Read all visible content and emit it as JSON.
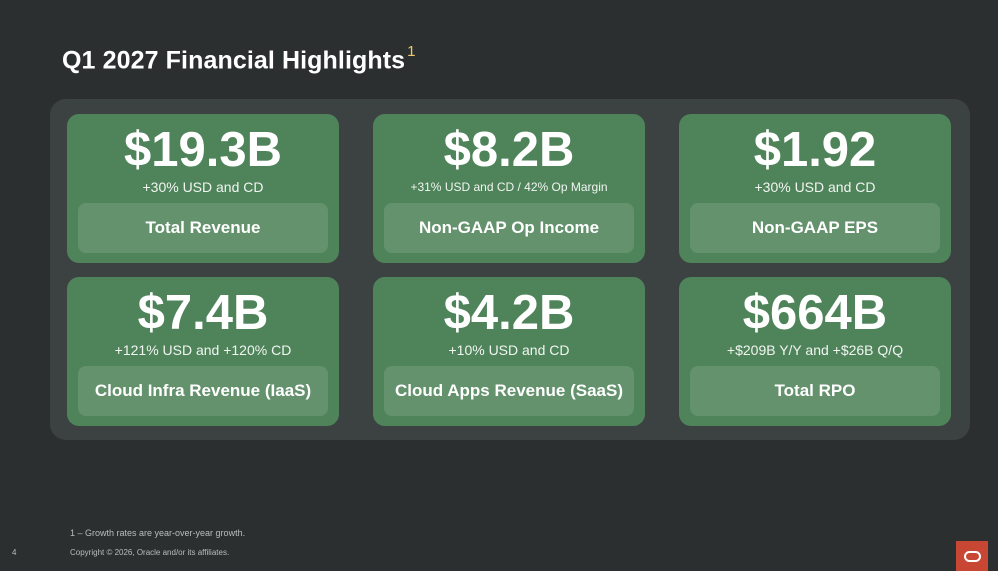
{
  "slide": {
    "title": "Q1 2027 Financial Highlights",
    "title_footnote_marker": "1"
  },
  "cards": [
    {
      "value": "$19.3B",
      "sub": "+30% USD and CD",
      "label": "Total Revenue"
    },
    {
      "value": "$8.2B",
      "sub": "+31% USD and CD / 42% Op Margin",
      "label": "Non-GAAP Op Income"
    },
    {
      "value": "$1.92",
      "sub": "+30% USD and CD",
      "label": "Non-GAAP EPS"
    },
    {
      "value": "$7.4B",
      "sub": "+121% USD and +120% CD",
      "label": "Cloud Infra Revenue (IaaS)"
    },
    {
      "value": "$4.2B",
      "sub": "+10% USD and CD",
      "label": "Cloud Apps Revenue (SaaS)"
    },
    {
      "value": "$664B",
      "sub": "+$209B Y/Y and +$26B Q/Q",
      "label": "Total RPO"
    }
  ],
  "footer": {
    "footnote": "1 – Growth rates are year-over-year growth.",
    "page_number": "4",
    "copyright": "Copyright © 2026, Oracle and/or its affiliates."
  },
  "colors": {
    "background": "#2b2f30",
    "panel": "#3c4142",
    "card": "#4f845b",
    "label_box": "#63926d",
    "accent_superscript": "#f0c96b",
    "logo": "#c74634"
  },
  "icons": {
    "logo": "oracle-logo-icon"
  }
}
